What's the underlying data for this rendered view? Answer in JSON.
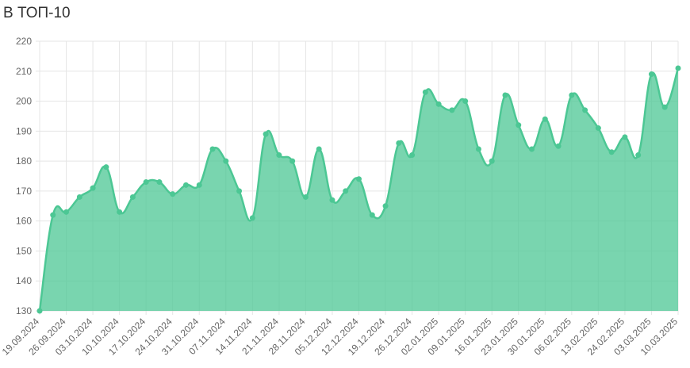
{
  "chart_data": {
    "type": "area",
    "title": "В ТОП-10",
    "categories": [
      "19.09.2024",
      null,
      "26.09.2024",
      null,
      "03.10.2024",
      null,
      "10.10.2024",
      null,
      "17.10.2024",
      null,
      "24.10.2024",
      null,
      "31.10.2024",
      null,
      "07.11.2024",
      null,
      "14.11.2024",
      null,
      "21.11.2024",
      null,
      "28.11.2024",
      null,
      "05.12.2024",
      null,
      "12.12.2024",
      null,
      "19.12.2024",
      null,
      "26.12.2024",
      null,
      "02.01.2025",
      null,
      "09.01.2025",
      null,
      "16.01.2025",
      null,
      "23.01.2025",
      null,
      "30.01.2025",
      null,
      "06.02.2025",
      null,
      "13.02.2025",
      null,
      "24.02.2025",
      null,
      "03.03.2025",
      null,
      "10.03.2025"
    ],
    "values": [
      130,
      162,
      163,
      168,
      171,
      178,
      163,
      168,
      173,
      173,
      169,
      172,
      172,
      184,
      180,
      170,
      161,
      189,
      182,
      180,
      168,
      184,
      167,
      170,
      174,
      162,
      165,
      186,
      182,
      203,
      199,
      197,
      200,
      184,
      180,
      202,
      192,
      184,
      194,
      185,
      202,
      197,
      191,
      183,
      188,
      182,
      209,
      198,
      211
    ],
    "color": "#4cc794",
    "ylim": [
      130,
      220
    ],
    "yticks": [
      130,
      140,
      150,
      160,
      170,
      180,
      190,
      200,
      210,
      220
    ],
    "grid": true
  }
}
